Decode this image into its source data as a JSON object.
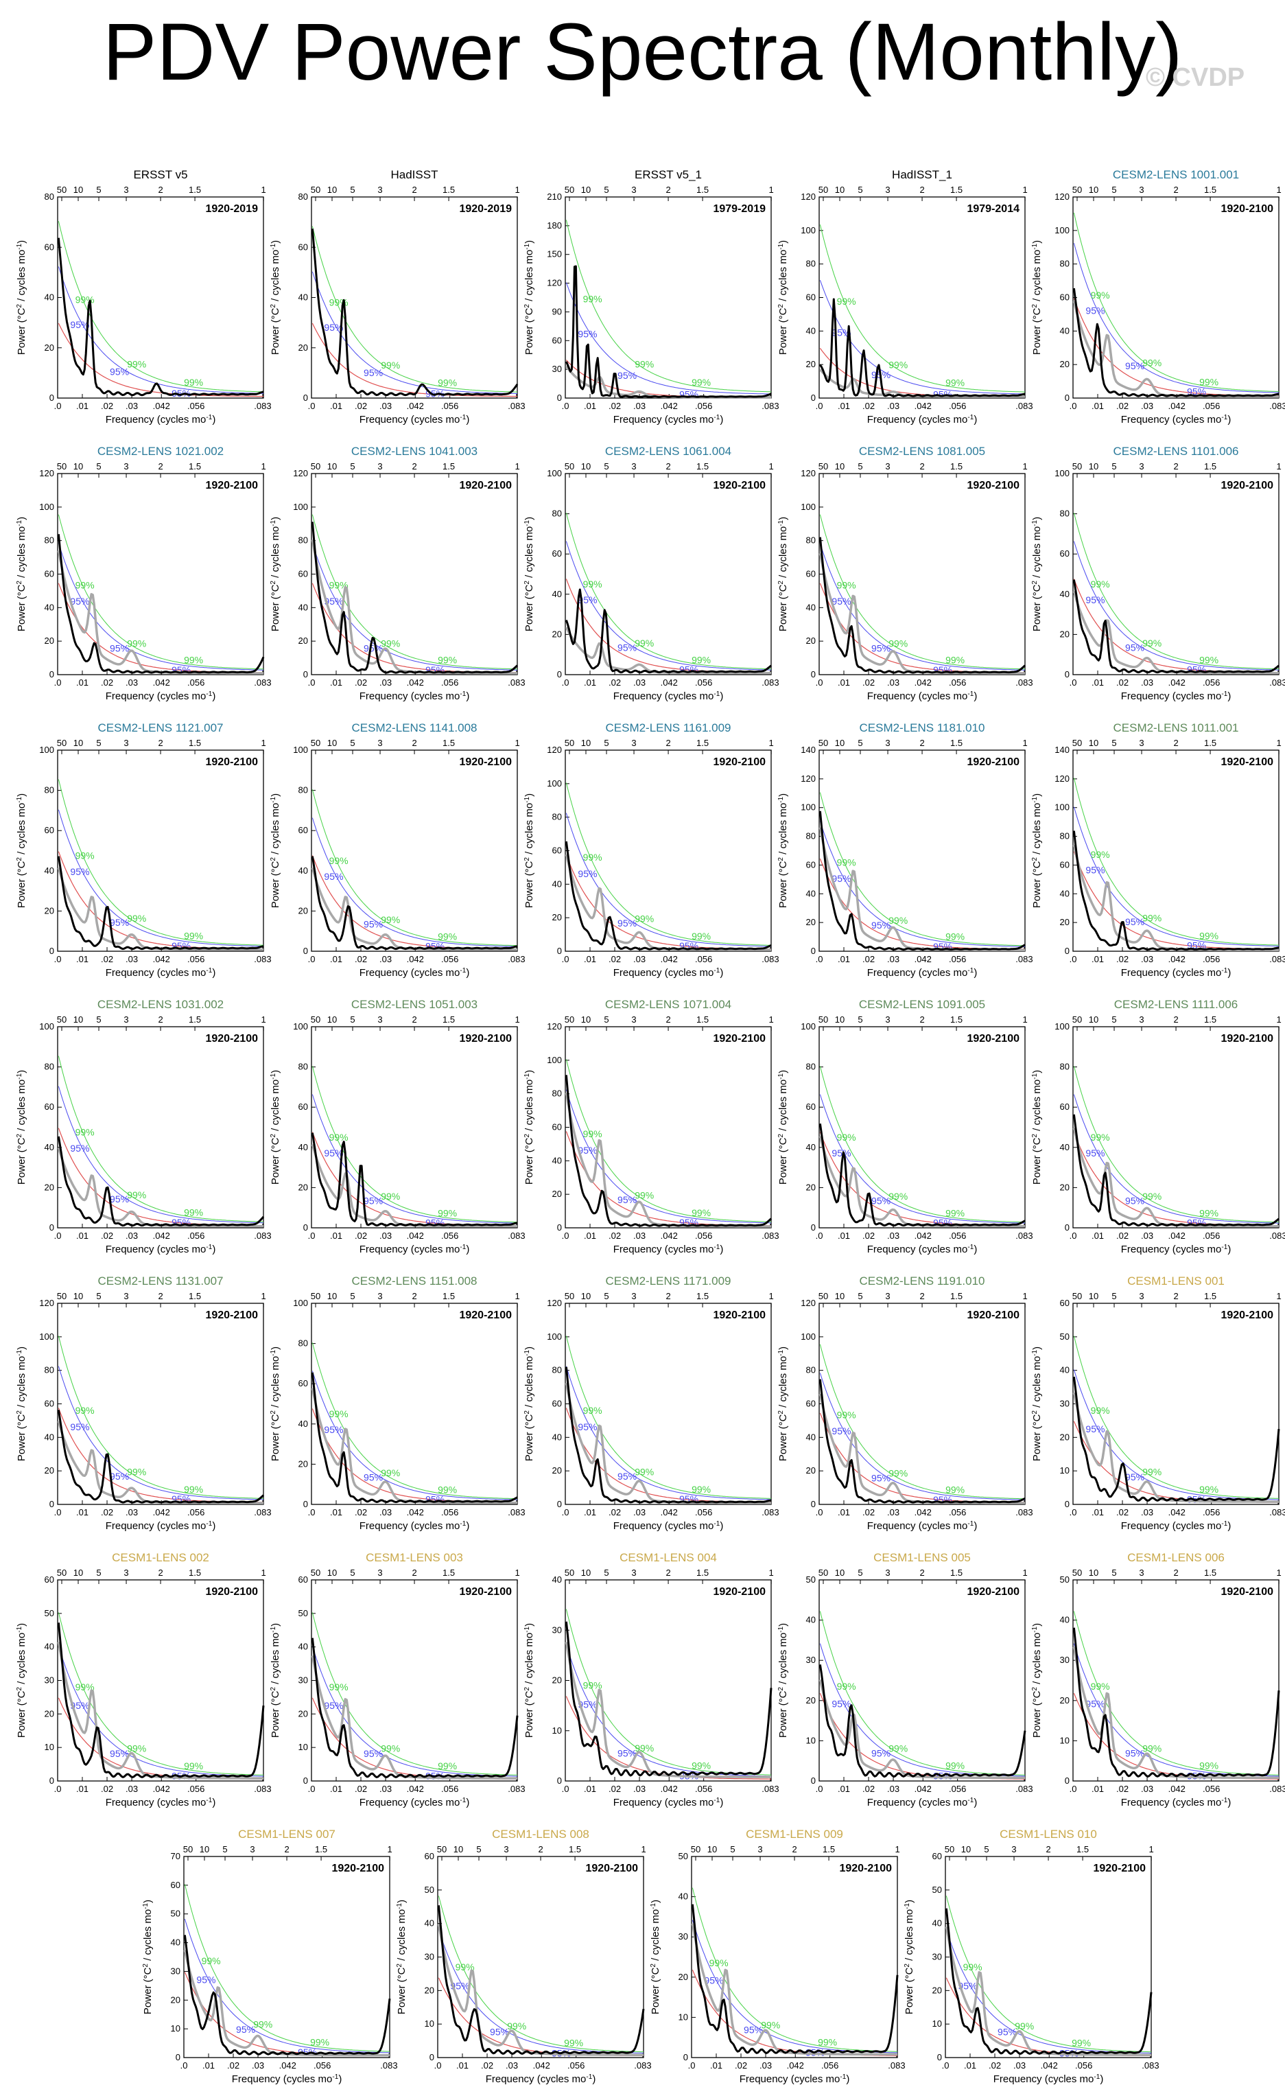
{
  "page": {
    "title": "PDV Power Spectra (Monthly)",
    "watermark": "© CVDP"
  },
  "labels": {
    "xlabel": "Frequency (cycles mo",
    "ylabel": "Power (°C",
    "ylabel_mid": " / cycles mo",
    "sup2": "2",
    "supm1": "-1",
    "close": ")",
    "sig99": "99%",
    "sig95": "95%"
  },
  "axes": {
    "bottom_ticks": [
      0,
      0.01,
      0.02,
      0.03,
      0.042,
      0.056,
      0.083
    ],
    "bottom_tick_labels": [
      ".0",
      ".01",
      ".02",
      ".03",
      ".042",
      ".056",
      ".083"
    ],
    "top_tick_labels": [
      "50",
      "10",
      "5",
      "3",
      "2",
      "1.5",
      "1"
    ],
    "top_ticks_period_years": [
      50,
      10,
      5,
      3,
      2,
      1.5,
      1
    ],
    "xlim": [
      0,
      0.0833
    ]
  },
  "colors": {
    "obs": "#000000",
    "cesm2_a": "#2a7a9a",
    "cesm2_b": "#5e8a5a",
    "cesm1": "#c9a84a",
    "spectrum": "#000000",
    "reference": "#a8a8a8",
    "red_noise": "#e05050",
    "sig99": "#46d246",
    "sig95": "#4a4af0"
  },
  "chart_data": [
    {
      "type": "line",
      "title": "ERSST v5",
      "group": "obs",
      "period": "1920-2019",
      "ylim": [
        0,
        80
      ],
      "yticks": [
        0,
        20,
        40,
        60,
        80
      ],
      "gray": false,
      "sig": [
        70,
        52,
        30
      ],
      "peak": 68,
      "bumps": [
        [
          0.013,
          33,
          0.0015
        ],
        [
          0.04,
          4,
          0.002
        ]
      ],
      "end": 2
    },
    {
      "type": "line",
      "title": "HadISST",
      "group": "obs",
      "period": "1920-2019",
      "ylim": [
        0,
        80
      ],
      "yticks": [
        0,
        20,
        40,
        60,
        80
      ],
      "gray": false,
      "sig": [
        68,
        50,
        30
      ],
      "peak": 72,
      "bumps": [
        [
          0.013,
          33,
          0.0015
        ],
        [
          0.045,
          4,
          0.002
        ]
      ],
      "end": 5
    },
    {
      "type": "line",
      "title": "ERSST v5_1",
      "group": "obs",
      "period": "1979-2019",
      "ylim": [
        0,
        210
      ],
      "yticks": [
        0,
        30,
        60,
        90,
        120,
        150,
        180,
        210
      ],
      "gray": true,
      "sig": [
        185,
        120,
        40
      ],
      "peak": 40,
      "bumps": [
        [
          0.004,
          135,
          0.0008
        ],
        [
          0.009,
          52,
          0.0009
        ],
        [
          0.013,
          38,
          0.0009
        ],
        [
          0.02,
          25,
          0.001
        ]
      ],
      "end": 4
    },
    {
      "type": "line",
      "title": "HadISST_1",
      "group": "obs",
      "period": "1979-2014",
      "ylim": [
        0,
        120
      ],
      "yticks": [
        0,
        20,
        40,
        60,
        80,
        100,
        120
      ],
      "gray": true,
      "sig": [
        103,
        70,
        30
      ],
      "peak": 20,
      "bumps": [
        [
          0.006,
          52,
          0.001
        ],
        [
          0.012,
          40,
          0.001
        ],
        [
          0.018,
          27,
          0.0012
        ],
        [
          0.024,
          18,
          0.0012
        ]
      ],
      "end": 2
    },
    {
      "type": "line",
      "title": "CESM2-LENS 1001.001",
      "group": "cesm2_a",
      "period": "1920-2100",
      "ylim": [
        0,
        120
      ],
      "yticks": [
        0,
        20,
        40,
        60,
        80,
        100,
        120
      ],
      "gray": true,
      "sig": [
        110,
        92,
        60
      ],
      "peak": 70,
      "bumps": [
        [
          0.01,
          35,
          0.0015
        ]
      ],
      "end": 2
    },
    {
      "type": "line",
      "title": "CESM2-LENS 1021.002",
      "group": "cesm2_a",
      "period": "1920-2100",
      "ylim": [
        0,
        120
      ],
      "yticks": [
        0,
        20,
        40,
        60,
        80,
        100,
        120
      ],
      "gray": true,
      "sig": [
        95,
        78,
        55
      ],
      "peak": 90,
      "bumps": [
        [
          0.015,
          15,
          0.0015
        ]
      ],
      "end": 10
    },
    {
      "type": "line",
      "title": "CESM2-LENS 1041.003",
      "group": "cesm2_a",
      "period": "1920-2100",
      "ylim": [
        0,
        120
      ],
      "yticks": [
        0,
        20,
        40,
        60,
        80,
        100,
        120
      ],
      "gray": true,
      "sig": [
        95,
        78,
        55
      ],
      "peak": 98,
      "bumps": [
        [
          0.013,
          30,
          0.0015
        ],
        [
          0.025,
          20,
          0.0018
        ]
      ],
      "end": 5
    },
    {
      "type": "line",
      "title": "CESM2-LENS 1061.004",
      "group": "cesm2_a",
      "period": "1920-2100",
      "ylim": [
        0,
        100
      ],
      "yticks": [
        0,
        20,
        40,
        60,
        80,
        100
      ],
      "gray": true,
      "sig": [
        80,
        66,
        48
      ],
      "peak": 28,
      "bumps": [
        [
          0.006,
          33,
          0.0015
        ],
        [
          0.016,
          30,
          0.0015
        ]
      ],
      "end": 4
    },
    {
      "type": "line",
      "title": "CESM2-LENS 1081.005",
      "group": "cesm2_a",
      "period": "1920-2100",
      "ylim": [
        0,
        120
      ],
      "yticks": [
        0,
        20,
        40,
        60,
        80,
        100,
        120
      ],
      "gray": true,
      "sig": [
        95,
        78,
        55
      ],
      "peak": 88,
      "bumps": [
        [
          0.013,
          22,
          0.0015
        ]
      ],
      "end": 5
    },
    {
      "type": "line",
      "title": "CESM2-LENS 1101.006",
      "group": "cesm2_a",
      "period": "1920-2100",
      "ylim": [
        0,
        100
      ],
      "yticks": [
        0,
        20,
        40,
        60,
        80,
        100
      ],
      "gray": true,
      "sig": [
        80,
        66,
        48
      ],
      "peak": 50,
      "bumps": [
        [
          0.013,
          22,
          0.0015
        ]
      ],
      "end": 4
    },
    {
      "type": "line",
      "title": "CESM2-LENS 1121.007",
      "group": "cesm2_a",
      "period": "1920-2100",
      "ylim": [
        0,
        100
      ],
      "yticks": [
        0,
        20,
        40,
        60,
        80,
        100
      ],
      "gray": true,
      "sig": [
        85,
        70,
        50
      ],
      "peak": 50,
      "bumps": [
        [
          0.02,
          20,
          0.0018
        ]
      ],
      "end": 2
    },
    {
      "type": "line",
      "title": "CESM2-LENS 1141.008",
      "group": "cesm2_a",
      "period": "1920-2100",
      "ylim": [
        0,
        100
      ],
      "yticks": [
        0,
        20,
        40,
        60,
        80,
        100
      ],
      "gray": true,
      "sig": [
        80,
        66,
        48
      ],
      "peak": 50,
      "bumps": [
        [
          0.015,
          20,
          0.0018
        ]
      ],
      "end": 2
    },
    {
      "type": "line",
      "title": "CESM2-LENS 1161.009",
      "group": "cesm2_a",
      "period": "1920-2100",
      "ylim": [
        0,
        120
      ],
      "yticks": [
        0,
        20,
        40,
        60,
        80,
        100,
        120
      ],
      "gray": true,
      "sig": [
        100,
        82,
        58
      ],
      "peak": 70,
      "bumps": [
        [
          0.018,
          18,
          0.0018
        ]
      ],
      "end": 3
    },
    {
      "type": "line",
      "title": "CESM2-LENS 1181.010",
      "group": "cesm2_a",
      "period": "1920-2100",
      "ylim": [
        0,
        140
      ],
      "yticks": [
        0,
        20,
        40,
        60,
        80,
        100,
        120,
        140
      ],
      "gray": true,
      "sig": [
        110,
        90,
        65
      ],
      "peak": 105,
      "bumps": [
        [
          0.013,
          18,
          0.0015
        ]
      ],
      "end": 4
    },
    {
      "type": "line",
      "title": "CESM2-LENS 1011.001",
      "group": "cesm2_b",
      "period": "1920-2100",
      "ylim": [
        0,
        140
      ],
      "yticks": [
        0,
        20,
        40,
        60,
        80,
        100,
        120,
        140
      ],
      "gray": true,
      "sig": [
        120,
        100,
        70
      ],
      "peak": 90,
      "bumps": [
        [
          0.02,
          18,
          0.0015
        ]
      ],
      "end": 2
    },
    {
      "type": "line",
      "title": "CESM2-LENS 1031.002",
      "group": "cesm2_b",
      "period": "1920-2100",
      "ylim": [
        0,
        100
      ],
      "yticks": [
        0,
        20,
        40,
        60,
        80,
        100
      ],
      "gray": true,
      "sig": [
        85,
        70,
        50
      ],
      "peak": 48,
      "bumps": [
        [
          0.02,
          18,
          0.0018
        ]
      ],
      "end": 5
    },
    {
      "type": "line",
      "title": "CESM2-LENS 1051.003",
      "group": "cesm2_b",
      "period": "1920-2100",
      "ylim": [
        0,
        100
      ],
      "yticks": [
        0,
        20,
        40,
        60,
        80,
        100
      ],
      "gray": true,
      "sig": [
        80,
        66,
        48
      ],
      "peak": 50,
      "bumps": [
        [
          0.013,
          38,
          0.0018
        ],
        [
          0.02,
          30,
          0.0012
        ]
      ],
      "end": 2
    },
    {
      "type": "line",
      "title": "CESM2-LENS 1071.004",
      "group": "cesm2_b",
      "period": "1920-2100",
      "ylim": [
        0,
        120
      ],
      "yticks": [
        0,
        20,
        40,
        60,
        80,
        100,
        120
      ],
      "gray": true,
      "sig": [
        100,
        82,
        58
      ],
      "peak": 98,
      "bumps": [
        [
          0.015,
          18,
          0.0015
        ]
      ],
      "end": 5
    },
    {
      "type": "line",
      "title": "CESM2-LENS 1091.005",
      "group": "cesm2_b",
      "period": "1920-2100",
      "ylim": [
        0,
        100
      ],
      "yticks": [
        0,
        20,
        40,
        60,
        80,
        100
      ],
      "gray": true,
      "sig": [
        80,
        66,
        48
      ],
      "peak": 55,
      "bumps": [
        [
          0.01,
          30,
          0.0015
        ],
        [
          0.02,
          15,
          0.0015
        ]
      ],
      "end": 3
    },
    {
      "type": "line",
      "title": "CESM2-LENS 1111.006",
      "group": "cesm2_b",
      "period": "1920-2100",
      "ylim": [
        0,
        100
      ],
      "yticks": [
        0,
        20,
        40,
        60,
        80,
        100
      ],
      "gray": true,
      "sig": [
        80,
        66,
        48
      ],
      "peak": 60,
      "bumps": [
        [
          0.013,
          22,
          0.0015
        ]
      ],
      "end": 4
    },
    {
      "type": "line",
      "title": "CESM2-LENS 1131.007",
      "group": "cesm2_b",
      "period": "1920-2100",
      "ylim": [
        0,
        120
      ],
      "yticks": [
        0,
        20,
        40,
        60,
        80,
        100,
        120
      ],
      "gray": true,
      "sig": [
        100,
        82,
        58
      ],
      "peak": 60,
      "bumps": [
        [
          0.02,
          28,
          0.0018
        ]
      ],
      "end": 5
    },
    {
      "type": "line",
      "title": "CESM2-LENS 1151.008",
      "group": "cesm2_b",
      "period": "1920-2100",
      "ylim": [
        0,
        100
      ],
      "yticks": [
        0,
        20,
        40,
        60,
        80,
        100
      ],
      "gray": true,
      "sig": [
        80,
        66,
        48
      ],
      "peak": 70,
      "bumps": [
        [
          0.013,
          20,
          0.0015
        ]
      ],
      "end": 3
    },
    {
      "type": "line",
      "title": "CESM2-LENS 1171.009",
      "group": "cesm2_b",
      "period": "1920-2100",
      "ylim": [
        0,
        120
      ],
      "yticks": [
        0,
        20,
        40,
        60,
        80,
        100,
        120
      ],
      "gray": true,
      "sig": [
        100,
        82,
        58
      ],
      "peak": 88,
      "bumps": [
        [
          0.013,
          20,
          0.0015
        ]
      ],
      "end": 2
    },
    {
      "type": "line",
      "title": "CESM2-LENS 1191.010",
      "group": "cesm2_b",
      "period": "1920-2100",
      "ylim": [
        0,
        120
      ],
      "yticks": [
        0,
        20,
        40,
        60,
        80,
        100,
        120
      ],
      "gray": true,
      "sig": [
        95,
        78,
        55
      ],
      "peak": 80,
      "bumps": [
        [
          0.013,
          20,
          0.0015
        ]
      ],
      "end": 3
    },
    {
      "type": "line",
      "title": "CESM1-LENS 001",
      "group": "cesm1",
      "period": "1920-2100",
      "ylim": [
        0,
        60
      ],
      "yticks": [
        0,
        10,
        20,
        30,
        40,
        50,
        60
      ],
      "gray": true,
      "sig": [
        50,
        40,
        25
      ],
      "peak": 40,
      "bumps": [
        [
          0.02,
          10,
          0.002
        ]
      ],
      "end": 22
    },
    {
      "type": "line",
      "title": "CESM1-LENS 002",
      "group": "cesm1",
      "period": "1920-2100",
      "ylim": [
        0,
        60
      ],
      "yticks": [
        0,
        10,
        20,
        30,
        40,
        50,
        60
      ],
      "gray": true,
      "sig": [
        50,
        40,
        25
      ],
      "peak": 50,
      "bumps": [
        [
          0.016,
          13,
          0.002
        ]
      ],
      "end": 22
    },
    {
      "type": "line",
      "title": "CESM1-LENS 003",
      "group": "cesm1",
      "period": "1920-2100",
      "ylim": [
        0,
        60
      ],
      "yticks": [
        0,
        10,
        20,
        30,
        40,
        50,
        60
      ],
      "gray": true,
      "sig": [
        50,
        40,
        25
      ],
      "peak": 45,
      "bumps": [
        [
          0.013,
          12,
          0.002
        ]
      ],
      "end": 19
    },
    {
      "type": "line",
      "title": "CESM1-LENS 004",
      "group": "cesm1",
      "period": "1920-2100",
      "ylim": [
        0,
        40
      ],
      "yticks": [
        0,
        10,
        20,
        30,
        40
      ],
      "gray": true,
      "sig": [
        34,
        27,
        17
      ],
      "peak": 33,
      "bumps": [
        [
          0.012,
          5,
          0.002
        ]
      ],
      "end": 18
    },
    {
      "type": "line",
      "title": "CESM1-LENS 005",
      "group": "cesm1",
      "period": "1920-2100",
      "ylim": [
        0,
        50
      ],
      "yticks": [
        0,
        10,
        20,
        30,
        40,
        50
      ],
      "gray": true,
      "sig": [
        42,
        34,
        22
      ],
      "peak": 30,
      "bumps": [
        [
          0.013,
          15,
          0.002
        ]
      ],
      "end": 12
    },
    {
      "type": "line",
      "title": "CESM1-LENS 006",
      "group": "cesm1",
      "period": "1920-2100",
      "ylim": [
        0,
        50
      ],
      "yticks": [
        0,
        10,
        20,
        30,
        40,
        50
      ],
      "gray": true,
      "sig": [
        42,
        34,
        22
      ],
      "peak": 40,
      "bumps": [
        [
          0.013,
          12,
          0.002
        ]
      ],
      "end": 22
    },
    {
      "type": "line",
      "title": "CESM1-LENS 007",
      "group": "cesm1",
      "period": "1920-2100",
      "ylim": [
        0,
        70
      ],
      "yticks": [
        0,
        10,
        20,
        30,
        40,
        50,
        60,
        70
      ],
      "gray": true,
      "sig": [
        60,
        48,
        30
      ],
      "peak": 45,
      "bumps": [
        [
          0.012,
          18,
          0.0025
        ]
      ],
      "end": 20
    },
    {
      "type": "line",
      "title": "CESM1-LENS 008",
      "group": "cesm1",
      "period": "1920-2100",
      "ylim": [
        0,
        60
      ],
      "yticks": [
        0,
        10,
        20,
        30,
        40,
        50,
        60
      ],
      "gray": true,
      "sig": [
        48,
        38,
        24
      ],
      "peak": 48,
      "bumps": [
        [
          0.015,
          12,
          0.002
        ]
      ],
      "end": 14
    },
    {
      "type": "line",
      "title": "CESM1-LENS 009",
      "group": "cesm1",
      "period": "1920-2100",
      "ylim": [
        0,
        50
      ],
      "yticks": [
        0,
        10,
        20,
        30,
        40,
        50
      ],
      "gray": true,
      "sig": [
        42,
        34,
        22
      ],
      "peak": 40,
      "bumps": [
        [
          0.013,
          10,
          0.002
        ]
      ],
      "end": 20
    },
    {
      "type": "line",
      "title": "CESM1-LENS 010",
      "group": "cesm1",
      "period": "1920-2100",
      "ylim": [
        0,
        60
      ],
      "yticks": [
        0,
        10,
        20,
        30,
        40,
        50,
        60
      ],
      "gray": true,
      "sig": [
        48,
        38,
        24
      ],
      "peak": 47,
      "bumps": [
        [
          0.013,
          10,
          0.002
        ]
      ],
      "end": 19
    }
  ]
}
